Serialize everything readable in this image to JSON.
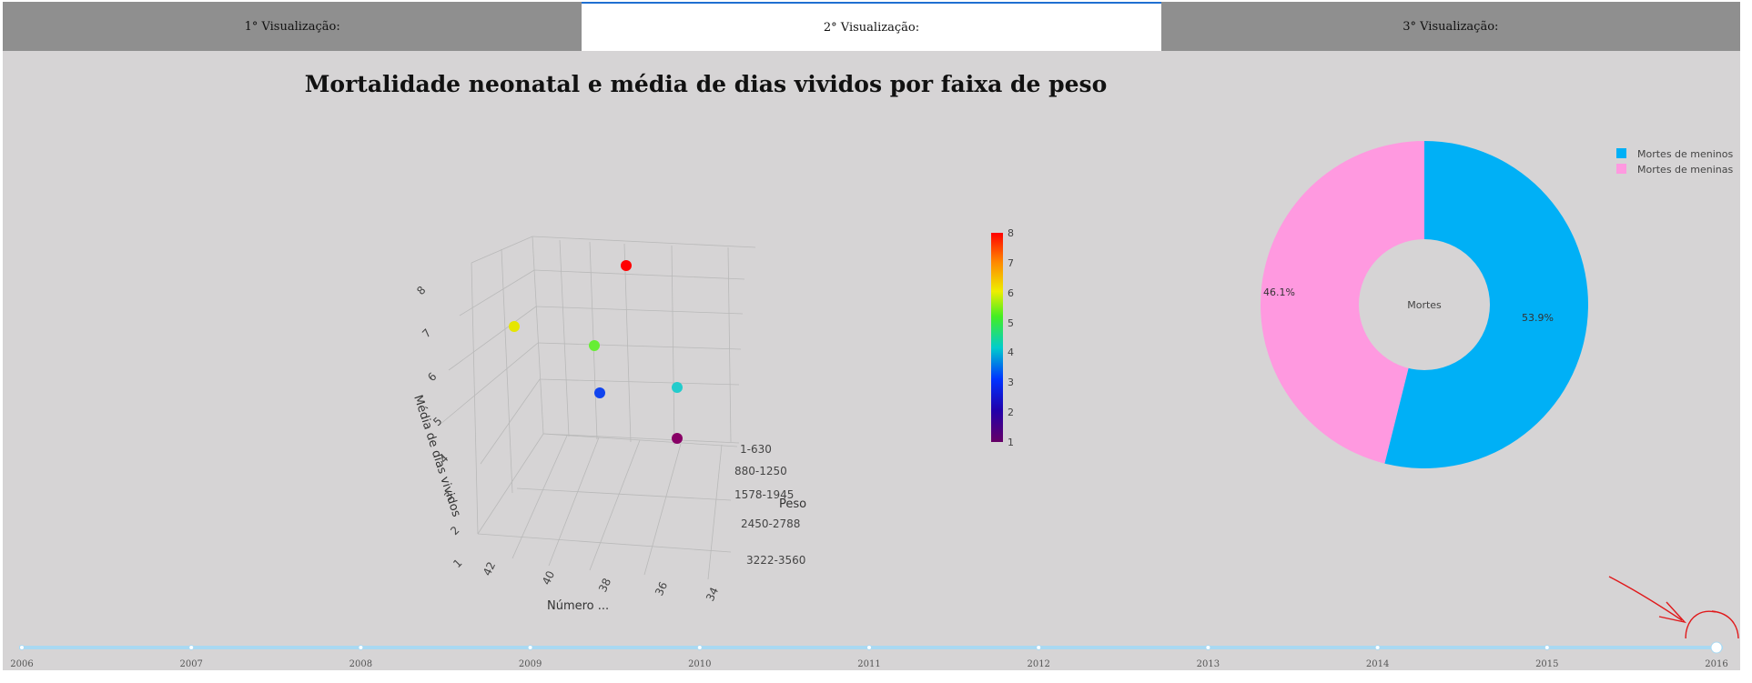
{
  "tabs": [
    {
      "label": "1° Visualização:",
      "active": false
    },
    {
      "label": "2° Visualização:",
      "active": true
    },
    {
      "label": "3° Visualização:",
      "active": false
    }
  ],
  "page_title": "Mortalidade neonatal e média de dias vividos por faixa de peso",
  "colors": {
    "tab_bg": "#8f8f8f",
    "active_tab_border": "#1f6fd1",
    "panel_bg": "#d6d4d5",
    "pie_boys": "#00b0f6",
    "pie_girls": "#ff99e0",
    "slider_track": "#a9d9f2",
    "annotation_red": "#e0191b"
  },
  "chart_data": [
    {
      "type": "scatter",
      "subtype": "scatter3d",
      "axes": {
        "x": {
          "label": "Número ...",
          "ticks": [
            "42",
            "40",
            "38",
            "36",
            "34"
          ]
        },
        "y": {
          "label": "Peso",
          "ticks": [
            "1-630",
            "880-1250",
            "1578-1945",
            "2450-2788",
            "3222-3560"
          ]
        },
        "z": {
          "label": "Média de dias vividos",
          "ticks": [
            "1",
            "2",
            "3",
            "4",
            "5",
            "6",
            "7",
            "8"
          ]
        }
      },
      "points": [
        {
          "z": 8,
          "color": "#ff0000"
        },
        {
          "z": 6,
          "color": "#e6e600"
        },
        {
          "z": 5,
          "color": "#66ee33"
        },
        {
          "z": 4,
          "color": "#22cccc"
        },
        {
          "z": 3,
          "color": "#1144ee"
        },
        {
          "z": 1,
          "color": "#880066"
        }
      ],
      "colorbar": {
        "min": 1,
        "max": 8,
        "ticks": [
          "8",
          "7",
          "6",
          "5",
          "4",
          "3",
          "2",
          "1"
        ]
      }
    },
    {
      "type": "pie",
      "hole": true,
      "center_label": "Mortes",
      "slices": [
        {
          "name": "Mortes de meninos",
          "value": 53.9,
          "label": "53.9%",
          "color": "#00b0f6"
        },
        {
          "name": "Mortes de meninas",
          "value": 46.1,
          "label": "46.1%",
          "color": "#ff99e0"
        }
      ],
      "legend": "top-right"
    }
  ],
  "timeline": {
    "years": [
      "2006",
      "2007",
      "2008",
      "2009",
      "2010",
      "2011",
      "2012",
      "2013",
      "2014",
      "2015",
      "2016"
    ],
    "selected": "2016"
  }
}
